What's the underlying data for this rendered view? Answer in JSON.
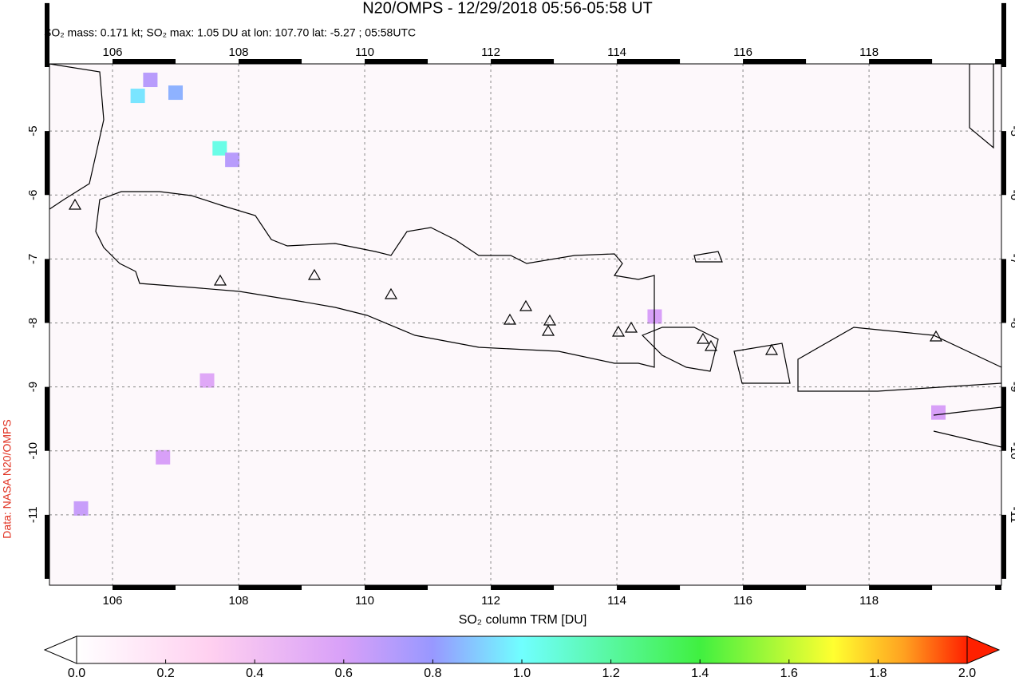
{
  "chart_data": {
    "type": "map",
    "title": "N20/OMPS - 12/29/2018 05:56-05:58 UT",
    "subtitle": "SO₂ mass: 0.171 kt; SO₂ max: 1.05 DU at lon: 107.70 lat: -5.27 ; 05:58UTC",
    "credit": "Data: NASA N20/OMPS",
    "xlim": [
      105,
      120.1
    ],
    "xticks": [
      106,
      108,
      110,
      112,
      114,
      116,
      118
    ],
    "ylim": [
      -12.1,
      -3.95
    ],
    "yticks": [
      -5,
      -6,
      -7,
      -8,
      -9,
      -10,
      -11
    ],
    "grid": true,
    "cells": {
      "lon": [
        106.6,
        106.4,
        107.7,
        107.0,
        107.9,
        106.8,
        105.5,
        107.5,
        119.1,
        114.6
      ],
      "lat": [
        -4.2,
        -4.45,
        -5.27,
        -4.4,
        -5.45,
        -10.1,
        -10.9,
        -8.9,
        -9.4,
        -7.9
      ],
      "values": [
        0.7,
        0.95,
        1.05,
        0.85,
        0.7,
        0.6,
        0.65,
        0.55,
        0.6,
        0.6
      ]
    },
    "colorbar": {
      "label": "SO₂ column TRM [DU]",
      "lim": [
        0,
        2
      ],
      "ticks": [
        {
          "value": 0,
          "label": "0.0"
        },
        {
          "value": 0.2,
          "label": "0.2"
        },
        {
          "value": 0.4,
          "label": "0.4"
        },
        {
          "value": 0.6,
          "label": "0.6"
        },
        {
          "value": 0.8,
          "label": "0.8"
        },
        {
          "value": 1,
          "label": "1.0"
        },
        {
          "value": 1.2,
          "label": "1.2"
        },
        {
          "value": 1.4,
          "label": "1.4"
        },
        {
          "value": 1.6,
          "label": "1.6"
        },
        {
          "value": 1.8,
          "label": "1.8"
        },
        {
          "value": 2,
          "label": "2.0"
        }
      ]
    }
  }
}
